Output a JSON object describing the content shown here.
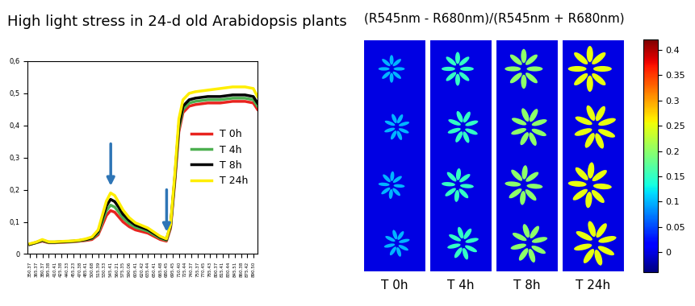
{
  "chart_data": [
    {
      "type": "line",
      "title": "High light stress in 24-d old Arabidopsis plants",
      "x": [
        350,
        365,
        380,
        395,
        410,
        425,
        440,
        455,
        470,
        485,
        500,
        515,
        525,
        535,
        545,
        555,
        565,
        575,
        590,
        605,
        620,
        635,
        650,
        665,
        680,
        690,
        700,
        710,
        720,
        735,
        750,
        780,
        810,
        840,
        870,
        890,
        900
      ],
      "series": [
        {
          "name": "T 0h",
          "color": "#e8231e",
          "values": [
            0.03,
            0.035,
            0.04,
            0.035,
            0.035,
            0.036,
            0.037,
            0.038,
            0.04,
            0.042,
            0.045,
            0.06,
            0.09,
            0.12,
            0.135,
            0.13,
            0.115,
            0.1,
            0.085,
            0.075,
            0.07,
            0.065,
            0.055,
            0.045,
            0.04,
            0.08,
            0.22,
            0.38,
            0.44,
            0.46,
            0.465,
            0.47,
            0.47,
            0.475,
            0.475,
            0.47,
            0.45
          ]
        },
        {
          "name": "T 4h",
          "color": "#4caf50",
          "values": [
            0.03,
            0.035,
            0.042,
            0.036,
            0.036,
            0.037,
            0.038,
            0.039,
            0.041,
            0.044,
            0.048,
            0.065,
            0.1,
            0.135,
            0.152,
            0.146,
            0.13,
            0.112,
            0.095,
            0.083,
            0.077,
            0.071,
            0.06,
            0.049,
            0.043,
            0.085,
            0.23,
            0.39,
            0.45,
            0.47,
            0.475,
            0.48,
            0.48,
            0.485,
            0.485,
            0.48,
            0.46
          ]
        },
        {
          "name": "T 8h",
          "color": "#000000",
          "values": [
            0.03,
            0.036,
            0.043,
            0.037,
            0.037,
            0.038,
            0.039,
            0.04,
            0.042,
            0.045,
            0.05,
            0.07,
            0.11,
            0.15,
            0.17,
            0.163,
            0.145,
            0.124,
            0.104,
            0.09,
            0.083,
            0.076,
            0.064,
            0.052,
            0.045,
            0.088,
            0.235,
            0.4,
            0.46,
            0.48,
            0.485,
            0.49,
            0.49,
            0.495,
            0.495,
            0.49,
            0.47
          ]
        },
        {
          "name": "T 24h",
          "color": "#ffee00",
          "values": [
            0.032,
            0.037,
            0.045,
            0.038,
            0.038,
            0.039,
            0.04,
            0.041,
            0.043,
            0.047,
            0.053,
            0.075,
            0.12,
            0.165,
            0.19,
            0.182,
            0.16,
            0.137,
            0.113,
            0.097,
            0.089,
            0.081,
            0.068,
            0.055,
            0.047,
            0.092,
            0.245,
            0.42,
            0.48,
            0.5,
            0.505,
            0.51,
            0.515,
            0.52,
            0.52,
            0.515,
            0.49
          ]
        }
      ],
      "xlim": [
        345,
        900
      ],
      "xticks": [
        350.37,
        365.37,
        380.37,
        395.38,
        410.41,
        425.38,
        440.33,
        455.23,
        470.38,
        485.41,
        500.68,
        515.39,
        530.33,
        545.41,
        560.21,
        575.35,
        590.06,
        605.41,
        620.42,
        635.44,
        650.41,
        665.48,
        680.45,
        695.45,
        {
          "value": 710.4,
          "label": "710.40"
        },
        725.44,
        740.37,
        755.37,
        770.45,
        785.43,
        800.37,
        815.41,
        830.44,
        845.51,
        860.38,
        875.42,
        {
          "value": 890.5,
          "label": "890.50"
        }
      ],
      "ylim": [
        0,
        0.6
      ],
      "yticks": [
        0,
        {
          "value": 0.1,
          "label": "0,1"
        },
        {
          "value": 0.2,
          "label": "0,2"
        },
        {
          "value": 0.3,
          "label": "0,3"
        },
        {
          "value": 0.4,
          "label": "0,4"
        },
        {
          "value": 0.5,
          "label": "0,5"
        },
        {
          "value": 0.6,
          "label": "0,6"
        }
      ],
      "legend": "center right",
      "arrows_x": [
        545.41,
        680.45
      ]
    },
    {
      "type": "image",
      "title": "(R545nm - R680nm)/(R545nm + R680nm)",
      "categories": [
        "T 0h",
        "T 4h",
        "T 8h",
        "T 24h"
      ],
      "values": [
        0.1,
        0.15,
        0.2,
        0.25
      ],
      "colorbar_range": [
        -0.04,
        0.42
      ],
      "colorbar_ticks": [
        0,
        0.05,
        0.1,
        0.15,
        0.2,
        0.25,
        0.3,
        0.35,
        0.4
      ]
    }
  ]
}
